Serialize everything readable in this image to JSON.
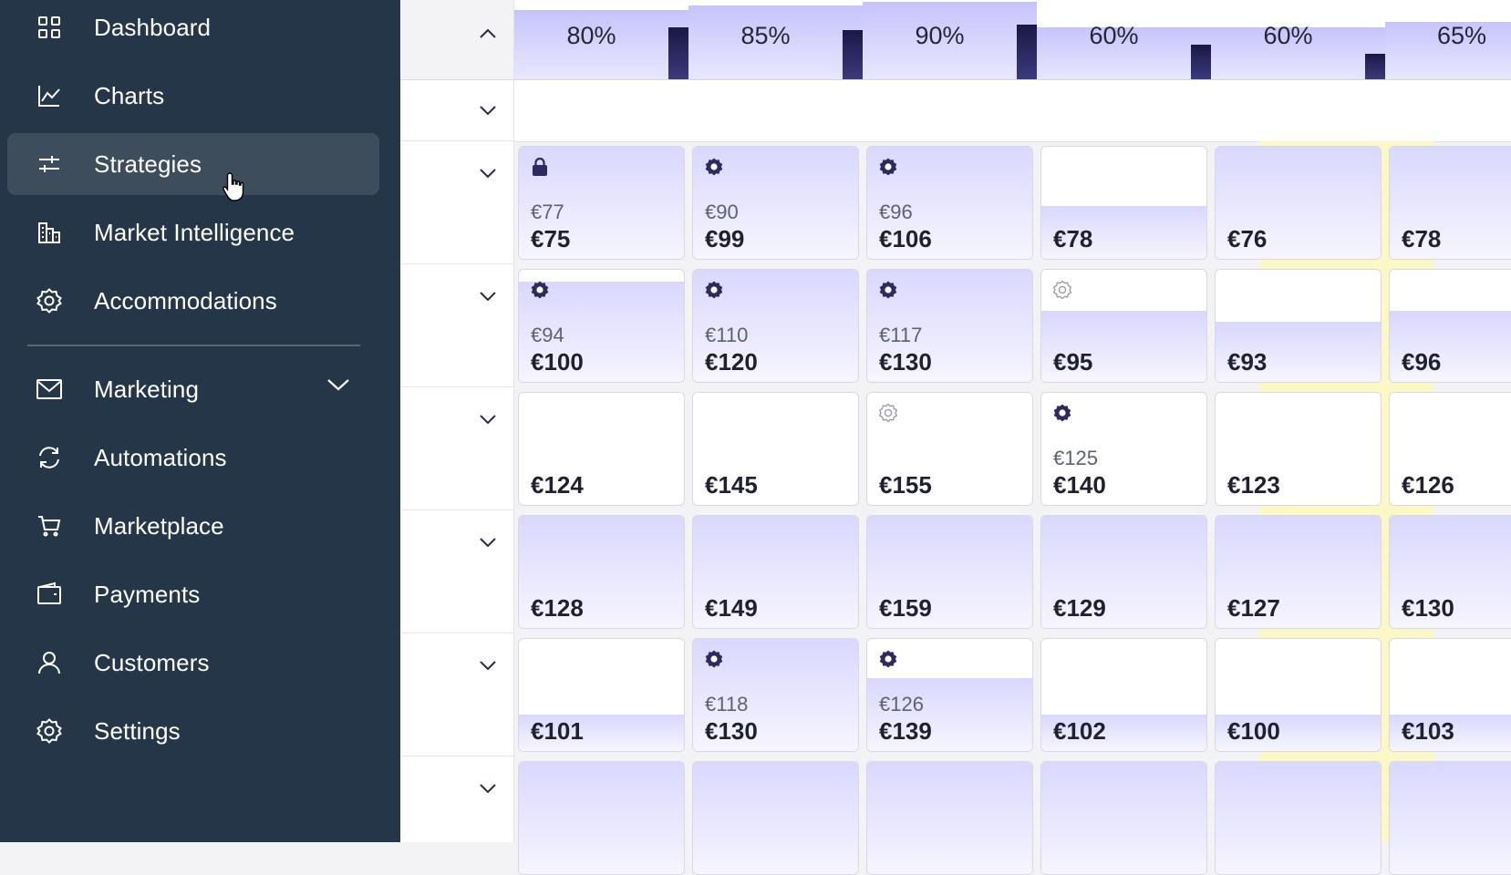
{
  "sidebar": {
    "items": [
      {
        "label": "Dashboard",
        "icon": "grid-icon"
      },
      {
        "label": "Charts",
        "icon": "line-chart-icon"
      },
      {
        "label": "Strategies",
        "icon": "sliders-icon",
        "active": true
      },
      {
        "label": "Market Intelligence",
        "icon": "buildings-icon"
      },
      {
        "label": "Accommodations",
        "icon": "gear-icon"
      },
      {
        "label": "Marketing",
        "icon": "mail-icon",
        "expandable": true
      },
      {
        "label": "Automations",
        "icon": "refresh-icon"
      },
      {
        "label": "Marketplace",
        "icon": "cart-icon"
      },
      {
        "label": "Payments",
        "icon": "wallet-icon"
      },
      {
        "label": "Customers",
        "icon": "user-icon"
      },
      {
        "label": "Settings",
        "icon": "gear-icon"
      }
    ]
  },
  "occupancy": [
    "80%",
    "85%",
    "90%",
    "60%",
    "60%",
    "65%"
  ],
  "grid": {
    "rows": [
      [
        {
          "icon": "lock",
          "old": "€77",
          "price": "€75"
        },
        {
          "icon": "gear",
          "old": "€90",
          "price": "€99"
        },
        {
          "icon": "gear",
          "old": "€96",
          "price": "€106"
        },
        {
          "icon": "",
          "old": "",
          "price": "€78"
        },
        {
          "icon": "",
          "old": "",
          "price": "€76"
        },
        {
          "icon": "",
          "old": "",
          "price": "€78"
        }
      ],
      [
        {
          "icon": "gear",
          "old": "€94",
          "price": "€100"
        },
        {
          "icon": "gear",
          "old": "€110",
          "price": "€120"
        },
        {
          "icon": "gear",
          "old": "€117",
          "price": "€130"
        },
        {
          "icon": "gear-outline",
          "old": "",
          "price": "€95"
        },
        {
          "icon": "",
          "old": "",
          "price": "€93"
        },
        {
          "icon": "",
          "old": "",
          "price": "€96"
        }
      ],
      [
        {
          "icon": "",
          "old": "",
          "price": "€124"
        },
        {
          "icon": "",
          "old": "",
          "price": "€145"
        },
        {
          "icon": "gear-outline",
          "old": "",
          "price": "€155"
        },
        {
          "icon": "gear",
          "old": "€125",
          "price": "€140"
        },
        {
          "icon": "",
          "old": "",
          "price": "€123"
        },
        {
          "icon": "",
          "old": "",
          "price": "€126"
        }
      ],
      [
        {
          "icon": "",
          "old": "",
          "price": "€128"
        },
        {
          "icon": "",
          "old": "",
          "price": "€149"
        },
        {
          "icon": "",
          "old": "",
          "price": "€159"
        },
        {
          "icon": "",
          "old": "",
          "price": "€129"
        },
        {
          "icon": "",
          "old": "",
          "price": "€127"
        },
        {
          "icon": "",
          "old": "",
          "price": "€130"
        }
      ],
      [
        {
          "icon": "",
          "old": "",
          "price": "€101"
        },
        {
          "icon": "gear",
          "old": "€118",
          "price": "€130"
        },
        {
          "icon": "gear",
          "old": "€126",
          "price": "€139"
        },
        {
          "icon": "",
          "old": "",
          "price": "€102"
        },
        {
          "icon": "",
          "old": "",
          "price": "€100"
        },
        {
          "icon": "",
          "old": "",
          "price": "€103"
        }
      ],
      [
        {
          "icon": "",
          "old": "",
          "price": ""
        },
        {
          "icon": "",
          "old": "",
          "price": ""
        },
        {
          "icon": "",
          "old": "",
          "price": ""
        },
        {
          "icon": "",
          "old": "",
          "price": ""
        },
        {
          "icon": "",
          "old": "",
          "price": ""
        },
        {
          "icon": "",
          "old": "",
          "price": ""
        }
      ]
    ]
  },
  "colors": {
    "sidebar_bg": "#243647",
    "active_item_bg": "#3d4d5c",
    "accent_lavender": "#c6c3fb",
    "occupancy_bar": "#1a1845",
    "highlight_column": "#fbf8c6"
  }
}
